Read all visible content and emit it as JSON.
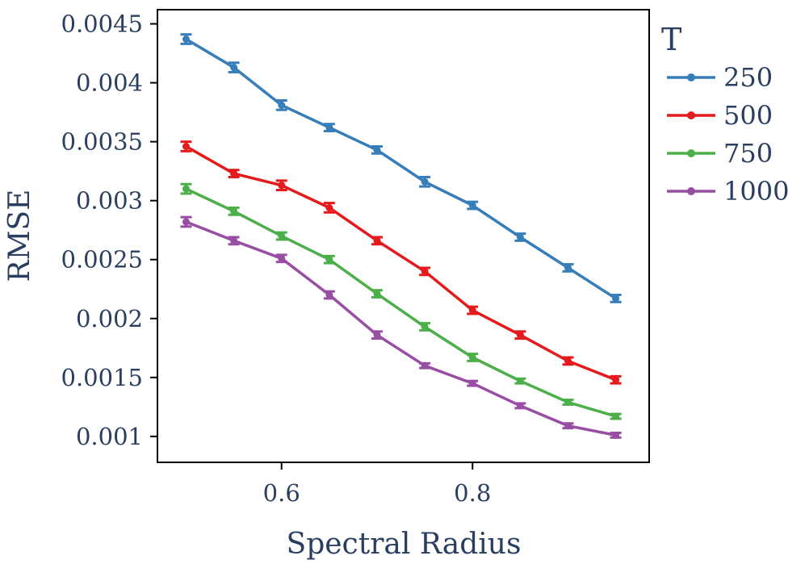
{
  "chart_data": {
    "type": "line",
    "title": "",
    "xlabel": "Spectral Radius",
    "ylabel": "RMSE",
    "xlim": [
      0.47,
      0.985
    ],
    "ylim": [
      0.00078,
      0.00462
    ],
    "x": [
      0.5,
      0.55,
      0.6,
      0.65,
      0.7,
      0.75,
      0.8,
      0.85,
      0.9,
      0.95
    ],
    "x_ticks": [
      {
        "value": 0.6,
        "label": "0.6"
      },
      {
        "value": 0.8,
        "label": "0.8"
      }
    ],
    "y_ticks": [
      {
        "value": 0.001,
        "label": "0.001"
      },
      {
        "value": 0.0015,
        "label": "0.0015"
      },
      {
        "value": 0.002,
        "label": "0.002"
      },
      {
        "value": 0.0025,
        "label": "0.0025"
      },
      {
        "value": 0.003,
        "label": "0.003"
      },
      {
        "value": 0.0035,
        "label": "0.0035"
      },
      {
        "value": 0.004,
        "label": "0.004"
      },
      {
        "value": 0.0045,
        "label": "0.0045"
      }
    ],
    "grid": false,
    "legend": {
      "title": "T",
      "position": "right"
    },
    "series": [
      {
        "name": "250",
        "color": "#377eb8",
        "values": [
          0.00437,
          0.00413,
          0.00381,
          0.00362,
          0.00343,
          0.00316,
          0.00296,
          0.00269,
          0.00243,
          0.00217
        ],
        "errors": [
          4e-05,
          4e-05,
          4e-05,
          3e-05,
          3e-05,
          4e-05,
          3e-05,
          3e-05,
          3e-05,
          3e-05
        ]
      },
      {
        "name": "500",
        "color": "#e41a1c",
        "values": [
          0.00346,
          0.00323,
          0.00313,
          0.00294,
          0.00266,
          0.0024,
          0.00207,
          0.00186,
          0.00164,
          0.00148
        ],
        "errors": [
          4e-05,
          3e-05,
          4e-05,
          4e-05,
          3e-05,
          3e-05,
          3e-05,
          3e-05,
          3e-05,
          3e-05
        ]
      },
      {
        "name": "750",
        "color": "#4daf4a",
        "values": [
          0.0031,
          0.00291,
          0.0027,
          0.0025,
          0.00221,
          0.00193,
          0.00167,
          0.00147,
          0.00129,
          0.00117
        ],
        "errors": [
          4e-05,
          3e-05,
          3e-05,
          3e-05,
          3e-05,
          3e-05,
          3e-05,
          2e-05,
          2e-05,
          2e-05
        ]
      },
      {
        "name": "1000",
        "color": "#984ea3",
        "values": [
          0.00282,
          0.00266,
          0.00251,
          0.0022,
          0.00186,
          0.0016,
          0.00145,
          0.00126,
          0.00109,
          0.00101
        ],
        "errors": [
          4e-05,
          3e-05,
          3e-05,
          3e-05,
          3e-05,
          2e-05,
          2e-05,
          2e-05,
          2e-05,
          2e-05
        ]
      }
    ]
  }
}
